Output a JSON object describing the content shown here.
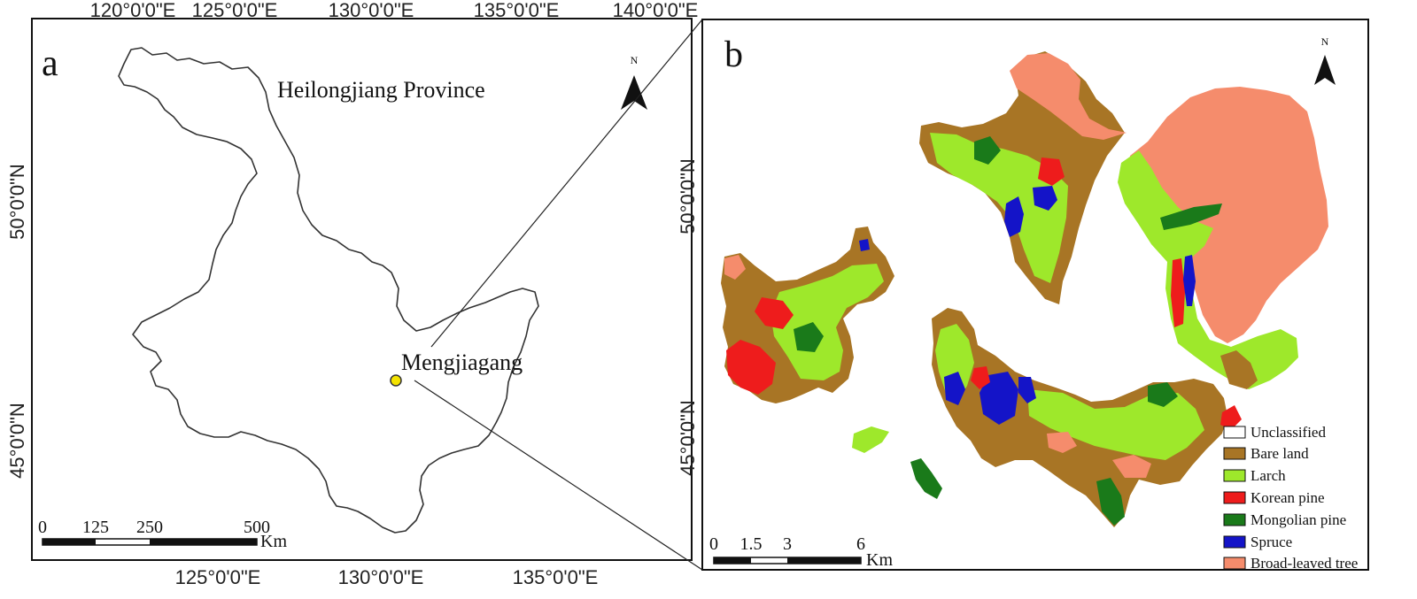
{
  "panel_a": {
    "letter": "a",
    "province_label": "Heilongjiang Province",
    "site_label": "Mengjiagang",
    "site_marker_color": "#f4e300",
    "north_label": "N",
    "top_longitudes": [
      "120°0'0\"E",
      "125°0'0\"E",
      "130°0'0\"E",
      "135°0'0\"E",
      "140°0'0\"E"
    ],
    "bottom_longitudes": [
      "125°0'0\"E",
      "130°0'0\"E",
      "135°0'0\"E"
    ],
    "left_latitudes": [
      "50°0'0\"N",
      "45°0'0\"N"
    ],
    "scale": {
      "ticks": [
        "0",
        "125",
        "250",
        "500"
      ],
      "unit": "Km"
    }
  },
  "panel_b": {
    "letter": "b",
    "north_label": "N",
    "left_latitudes": [
      "50°0'0\"N",
      "45°0'0\"N"
    ],
    "scale": {
      "ticks": [
        "0",
        "1.5",
        "3",
        "6"
      ],
      "unit": "Km"
    },
    "legend": [
      {
        "label": "Unclassified",
        "color": "#ffffff"
      },
      {
        "label": "Bare land",
        "color": "#a87525"
      },
      {
        "label": "Larch",
        "color": "#9ee82b"
      },
      {
        "label": "Korean pine",
        "color": "#ee1c1c"
      },
      {
        "label": "Mongolian pine",
        "color": "#1a7a1a"
      },
      {
        "label": "Spruce",
        "color": "#1414c8"
      },
      {
        "label": "Broad-leaved tree",
        "color": "#f58c6c"
      }
    ]
  }
}
